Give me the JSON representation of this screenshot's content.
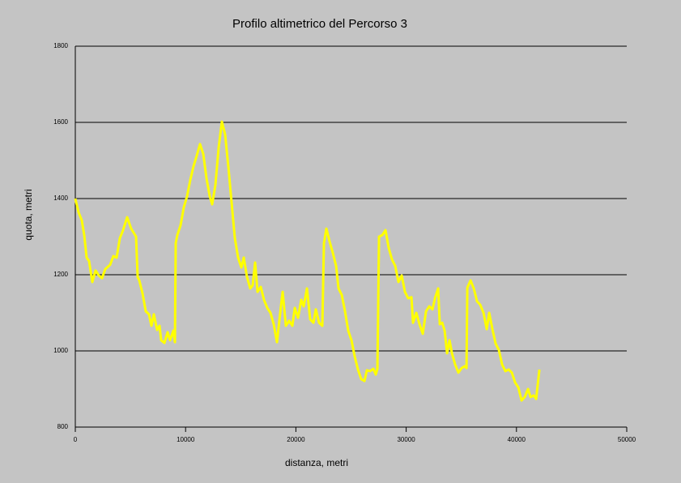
{
  "chart_data": {
    "type": "line",
    "title": "Profilo altimetrico del Percorso 3",
    "x_label": "distanza, metri",
    "y_label": "quota, metri",
    "xlim": [
      0,
      50000
    ],
    "xticks": [
      0,
      10000,
      20000,
      30000,
      40000,
      50000
    ],
    "ylim": [
      800,
      1800
    ],
    "yticks": [
      800,
      1000,
      1200,
      1400,
      1600,
      1800
    ],
    "grid": true,
    "series": [
      {
        "color": "#ffff00",
        "x": [
          0,
          294,
          587,
          808,
          1028,
          1248,
          1542,
          1836,
          2129,
          2423,
          2717,
          3157,
          3451,
          3745,
          4039,
          4332,
          4700,
          5067,
          5507,
          5654,
          5801,
          6095,
          6389,
          6683,
          6902,
          7123,
          7417,
          7637,
          7784,
          8077,
          8371,
          8591,
          8885,
          9032,
          9105,
          9252,
          9546,
          9840,
          10133,
          10427,
          10721,
          11015,
          11308,
          11602,
          11896,
          12190,
          12410,
          12704,
          12998,
          13291,
          13585,
          13879,
          14173,
          14466,
          14760,
          15054,
          15274,
          15568,
          15862,
          16082,
          16302,
          16523,
          16816,
          17110,
          17404,
          17698,
          17991,
          18285,
          18579,
          18799,
          19093,
          19387,
          19681,
          19901,
          20195,
          20488,
          20709,
          21002,
          21296,
          21590,
          21810,
          22104,
          22398,
          22545,
          22765,
          23059,
          23353,
          23646,
          23867,
          24160,
          24454,
          24748,
          25042,
          25336,
          25629,
          25923,
          26217,
          26437,
          26731,
          27025,
          27245,
          27392,
          27539,
          27833,
          28127,
          28420,
          28714,
          29008,
          29302,
          29596,
          29889,
          30183,
          30477,
          30624,
          30918,
          31211,
          31505,
          31799,
          32093,
          32386,
          32607,
          32900,
          33047,
          33268,
          33488,
          33708,
          33928,
          34149,
          34442,
          34736,
          35030,
          35324,
          35471,
          35544,
          35838,
          36131,
          36425,
          36719,
          37013,
          37306,
          37527,
          37820,
          38114,
          38408,
          38702,
          38995,
          39289,
          39583,
          39877,
          40170,
          40464,
          40758,
          41052,
          41272,
          41566,
          41786,
          42080
        ],
        "values": [
          1400,
          1364,
          1343,
          1304,
          1245,
          1236,
          1181,
          1211,
          1198,
          1191,
          1215,
          1226,
          1249,
          1245,
          1296,
          1317,
          1351,
          1321,
          1300,
          1194,
          1185,
          1151,
          1104,
          1096,
          1066,
          1096,
          1055,
          1066,
          1028,
          1021,
          1049,
          1028,
          1053,
          1023,
          1283,
          1304,
          1330,
          1377,
          1406,
          1449,
          1485,
          1513,
          1543,
          1517,
          1453,
          1406,
          1385,
          1436,
          1534,
          1602,
          1568,
          1483,
          1389,
          1296,
          1245,
          1219,
          1245,
          1194,
          1164,
          1172,
          1232,
          1155,
          1168,
          1134,
          1113,
          1100,
          1070,
          1023,
          1100,
          1155,
          1066,
          1079,
          1066,
          1113,
          1087,
          1134,
          1117,
          1164,
          1083,
          1074,
          1109,
          1074,
          1066,
          1283,
          1321,
          1287,
          1257,
          1223,
          1164,
          1147,
          1104,
          1053,
          1028,
          985,
          951,
          926,
          921,
          949,
          947,
          953,
          938,
          953,
          1300,
          1304,
          1317,
          1270,
          1240,
          1223,
          1181,
          1198,
          1155,
          1138,
          1141,
          1074,
          1100,
          1070,
          1045,
          1104,
          1117,
          1109,
          1138,
          1164,
          1070,
          1074,
          1053,
          994,
          1028,
          994,
          964,
          943,
          955,
          960,
          955,
          1166,
          1185,
          1164,
          1130,
          1121,
          1100,
          1057,
          1100,
          1057,
          1019,
          1002,
          964,
          947,
          951,
          943,
          917,
          904,
          870,
          879,
          900,
          879,
          883,
          874,
          951
        ]
      }
    ]
  }
}
